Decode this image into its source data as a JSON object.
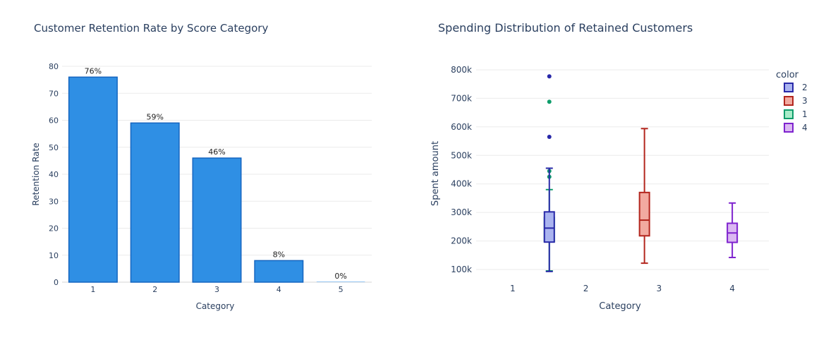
{
  "chart_data": [
    {
      "type": "bar",
      "title": "Customer Retention Rate by Score Category",
      "xlabel": "Category",
      "ylabel": "Retention Rate",
      "categories": [
        "1",
        "2",
        "3",
        "4",
        "5"
      ],
      "values": [
        76,
        59,
        46,
        8,
        0
      ],
      "data_labels": [
        "76%",
        "59%",
        "46%",
        "8%",
        "0%"
      ],
      "ylim": [
        0,
        80
      ],
      "yticks": [
        "0",
        "10",
        "20",
        "30",
        "40",
        "50",
        "60",
        "70",
        "80"
      ],
      "grid": true,
      "colors": {
        "bar_fill": "#2f8fe4",
        "bar_edge": "#1565c0"
      }
    },
    {
      "type": "box",
      "title": "Spending Distribution of Retained Customers",
      "xlabel": "Category",
      "ylabel": "Spent amount",
      "categories": [
        "1",
        "2",
        "3",
        "4"
      ],
      "yticks": [
        "100k",
        "200k",
        "300k",
        "400k",
        "500k",
        "600k",
        "700k",
        "800k"
      ],
      "ylim": [
        60000,
        820000
      ],
      "grid": true,
      "legend": {
        "title": "color",
        "placement": "top-right",
        "order": [
          "2",
          "3",
          "1",
          "4"
        ]
      },
      "series": [
        {
          "name": "1",
          "category": "1",
          "color": "#0f9d6b",
          "fill": "#a8ecc9",
          "min": 95000,
          "q1": 198000,
          "median": 232000,
          "q3": 282000,
          "max": 380000,
          "outliers": [
            425000,
            445000,
            688000
          ]
        },
        {
          "name": "2",
          "category": "2",
          "color": "#2828a8",
          "fill": "#aab4f0",
          "min": 93000,
          "q1": 196000,
          "median": 245000,
          "q3": 302000,
          "max": 455000,
          "outliers": [
            565000,
            777000
          ]
        },
        {
          "name": "3",
          "category": "3",
          "color": "#b3261e",
          "fill": "#f2aaa0",
          "min": 122000,
          "q1": 218000,
          "median": 273000,
          "q3": 370000,
          "max": 594000,
          "outliers": []
        },
        {
          "name": "4",
          "category": "4",
          "color": "#7e22ce",
          "fill": "#dbb8f2",
          "min": 142000,
          "q1": 195000,
          "median": 228000,
          "q3": 262000,
          "max": 333000,
          "outliers": []
        }
      ]
    }
  ]
}
